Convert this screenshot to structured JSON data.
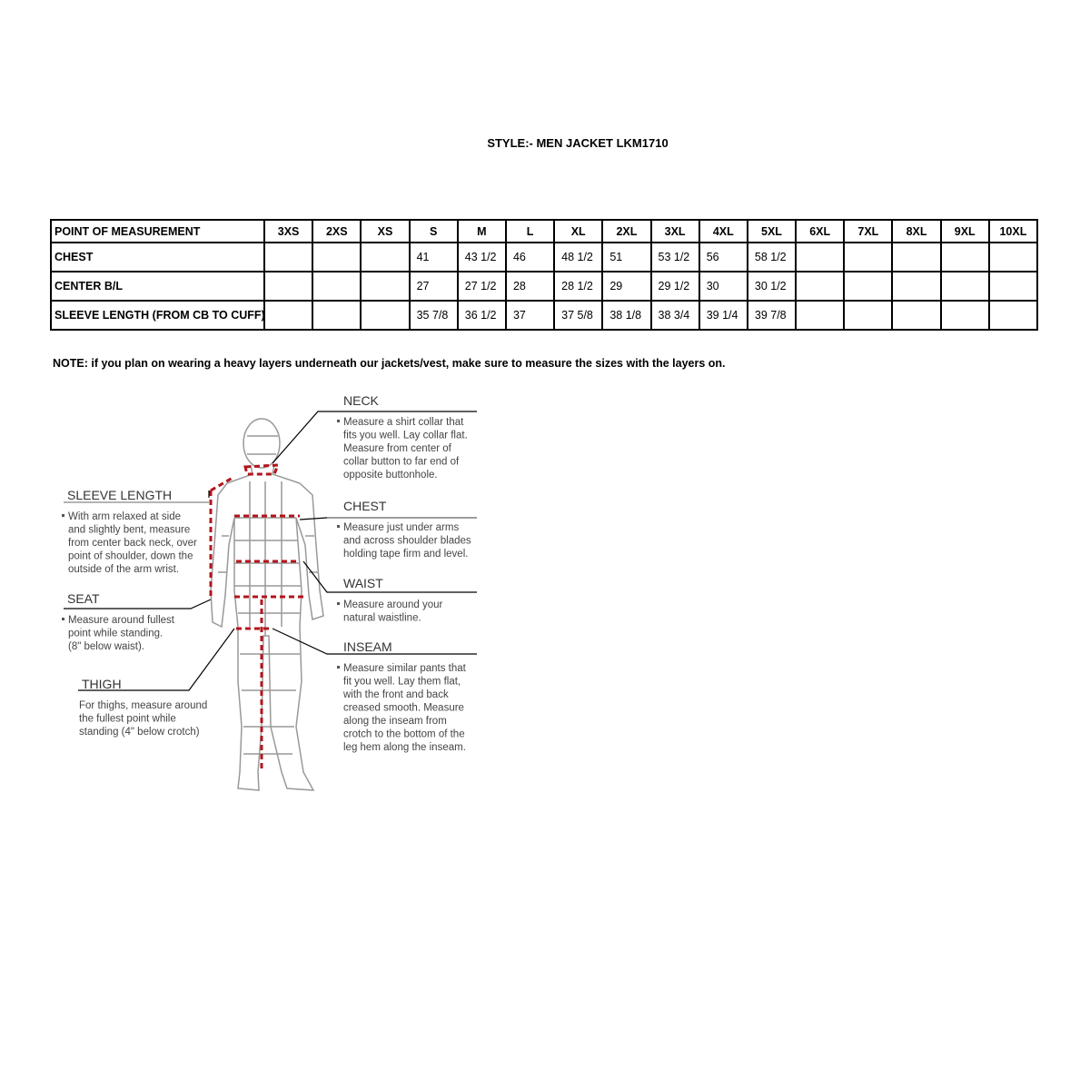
{
  "title": "STYLE:- MEN JACKET  LKM1710",
  "table": {
    "header": [
      "POINT OF MEASUREMENT",
      "3XS",
      "2XS",
      "XS",
      "S",
      "M",
      "L",
      "XL",
      "2XL",
      "3XL",
      "4XL",
      "5XL",
      "6XL",
      "7XL",
      "8XL",
      "9XL",
      "10XL"
    ],
    "rows": [
      [
        "CHEST",
        null,
        null,
        null,
        "41",
        "43 1/2",
        "46",
        "48 1/2",
        "51",
        "53 1/2",
        "56",
        "58 1/2",
        null,
        null,
        null,
        null,
        null
      ],
      [
        "CENTER B/L",
        null,
        null,
        null,
        "27",
        "27 1/2",
        "28",
        "28 1/2",
        "29",
        "29 1/2",
        "30",
        "30 1/2",
        null,
        null,
        null,
        null,
        null
      ],
      [
        "SLEEVE LENGTH (FROM CB TO CUFF)",
        null,
        null,
        null,
        "35 7/8",
        "36 1/2",
        "37",
        "37 5/8",
        "38 1/8",
        "38 3/4",
        "39 1/4",
        "39 7/8",
        null,
        null,
        null,
        null,
        null
      ]
    ]
  },
  "note": "NOTE: if you plan on wearing a heavy layers underneath our jackets/vest, make sure to measure the sizes with the layers on.",
  "diagram": {
    "labels": [
      {
        "heading": "NECK",
        "lines": [
          "Measure a shirt collar that",
          "fits you well. Lay collar flat.",
          "Measure from center of",
          "collar button to far end of",
          "opposite buttonhole."
        ]
      },
      {
        "heading": "SLEEVE LENGTH",
        "lines": [
          "With arm relaxed at side",
          "and slightly bent, measure",
          "from center back neck, over",
          "point of shoulder, down the",
          "outside of the arm wrist."
        ]
      },
      {
        "heading": "CHEST",
        "lines": [
          "Measure just under arms",
          "and across shoulder blades",
          "holding tape firm and level."
        ]
      },
      {
        "heading": "WAIST",
        "lines": [
          "Measure around your",
          "natural waistline."
        ]
      },
      {
        "heading": "SEAT",
        "lines": [
          "Measure around fullest",
          "point while standing.",
          "(8\" below waist)."
        ]
      },
      {
        "heading": "INSEAM",
        "lines": [
          "Measure similar pants that",
          "fit you well. Lay them flat,",
          "with the front and back",
          "creased smooth. Measure",
          "along the inseam from",
          "crotch to the bottom of the",
          "leg hem along the inseam."
        ]
      },
      {
        "heading": "THIGH",
        "lines": [
          "For thighs, measure around",
          "the fullest point while",
          "standing (4\" below crotch)"
        ]
      }
    ]
  }
}
